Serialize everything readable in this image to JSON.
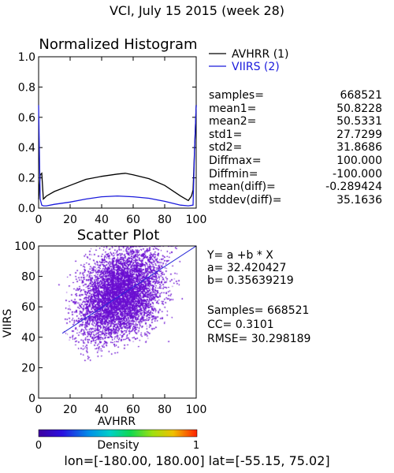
{
  "page_title": "VCI,  July 15 2015 (week 28)",
  "footer": "lon=[-180.00, 180.00] lat=[-55.15, 75.02]",
  "chart_data": [
    {
      "type": "line",
      "title": "Normalized Histogram",
      "xlim": [
        0,
        100
      ],
      "ylim": [
        0,
        1.0
      ],
      "x_ticks": [
        "0",
        "20",
        "40",
        "60",
        "80",
        "100"
      ],
      "y_ticks": [
        "0.0",
        "0.2",
        "0.4",
        "0.6",
        "0.8",
        "1.0"
      ],
      "legend": [
        "AVHRR (1)",
        "VIIRS (2)"
      ],
      "series": [
        {
          "name": "AVHRR (1)",
          "color": "#000000",
          "x": [
            0,
            1,
            2,
            3,
            4,
            5,
            10,
            20,
            30,
            40,
            50,
            55,
            60,
            70,
            80,
            90,
            95,
            97,
            98,
            99,
            100
          ],
          "y": [
            0.06,
            0.22,
            0.23,
            0.06,
            0.07,
            0.08,
            0.11,
            0.15,
            0.19,
            0.21,
            0.225,
            0.23,
            0.22,
            0.195,
            0.15,
            0.08,
            0.05,
            0.08,
            0.12,
            0.4,
            0.68
          ]
        },
        {
          "name": "VIIRS (2)",
          "color": "#1a1adc",
          "x": [
            0,
            1,
            2,
            3,
            5,
            10,
            20,
            30,
            40,
            50,
            60,
            70,
            80,
            90,
            95,
            98,
            99,
            100
          ],
          "y": [
            0.68,
            0.06,
            0.02,
            0.015,
            0.015,
            0.025,
            0.04,
            0.06,
            0.075,
            0.08,
            0.075,
            0.065,
            0.045,
            0.02,
            0.015,
            0.02,
            0.4,
            0.68
          ]
        }
      ]
    },
    {
      "type": "scatter",
      "title": "Scatter Plot",
      "xlabel": "AVHRR",
      "ylabel": "VIIRS",
      "xlim": [
        0,
        100
      ],
      "ylim": [
        0,
        100
      ],
      "x_ticks": [
        "0",
        "20",
        "40",
        "60",
        "80",
        "100"
      ],
      "y_ticks": [
        "0",
        "20",
        "40",
        "60",
        "80",
        "100"
      ],
      "point_color": "#6a0fd0",
      "fit_line": {
        "a": 32.420427,
        "b": 0.35639219,
        "color": "#2a2ad8"
      },
      "colorbar": {
        "label": "Density",
        "min": "0",
        "max": "1"
      }
    }
  ],
  "stats": [
    {
      "label": "samples=",
      "value": "668521"
    },
    {
      "label": "mean1=",
      "value": "50.8228"
    },
    {
      "label": "mean2=",
      "value": "50.5331"
    },
    {
      "label": "std1=",
      "value": "27.7299"
    },
    {
      "label": "std2=",
      "value": "31.8686"
    },
    {
      "label": "Diffmax=",
      "value": "100.000"
    },
    {
      "label": "Diffmin=",
      "value": "-100.000"
    },
    {
      "label": "mean(diff)=",
      "value": "-0.289424"
    },
    {
      "label": "stddev(diff)=",
      "value": "35.1636"
    }
  ],
  "fit_text": {
    "equation": "Y= a +b * X",
    "a": "a= 32.420427",
    "b": "b= 0.35639219",
    "samples": "Samples= 668521",
    "cc": "CC=  0.3101",
    "rmse": "RMSE= 30.298189"
  }
}
